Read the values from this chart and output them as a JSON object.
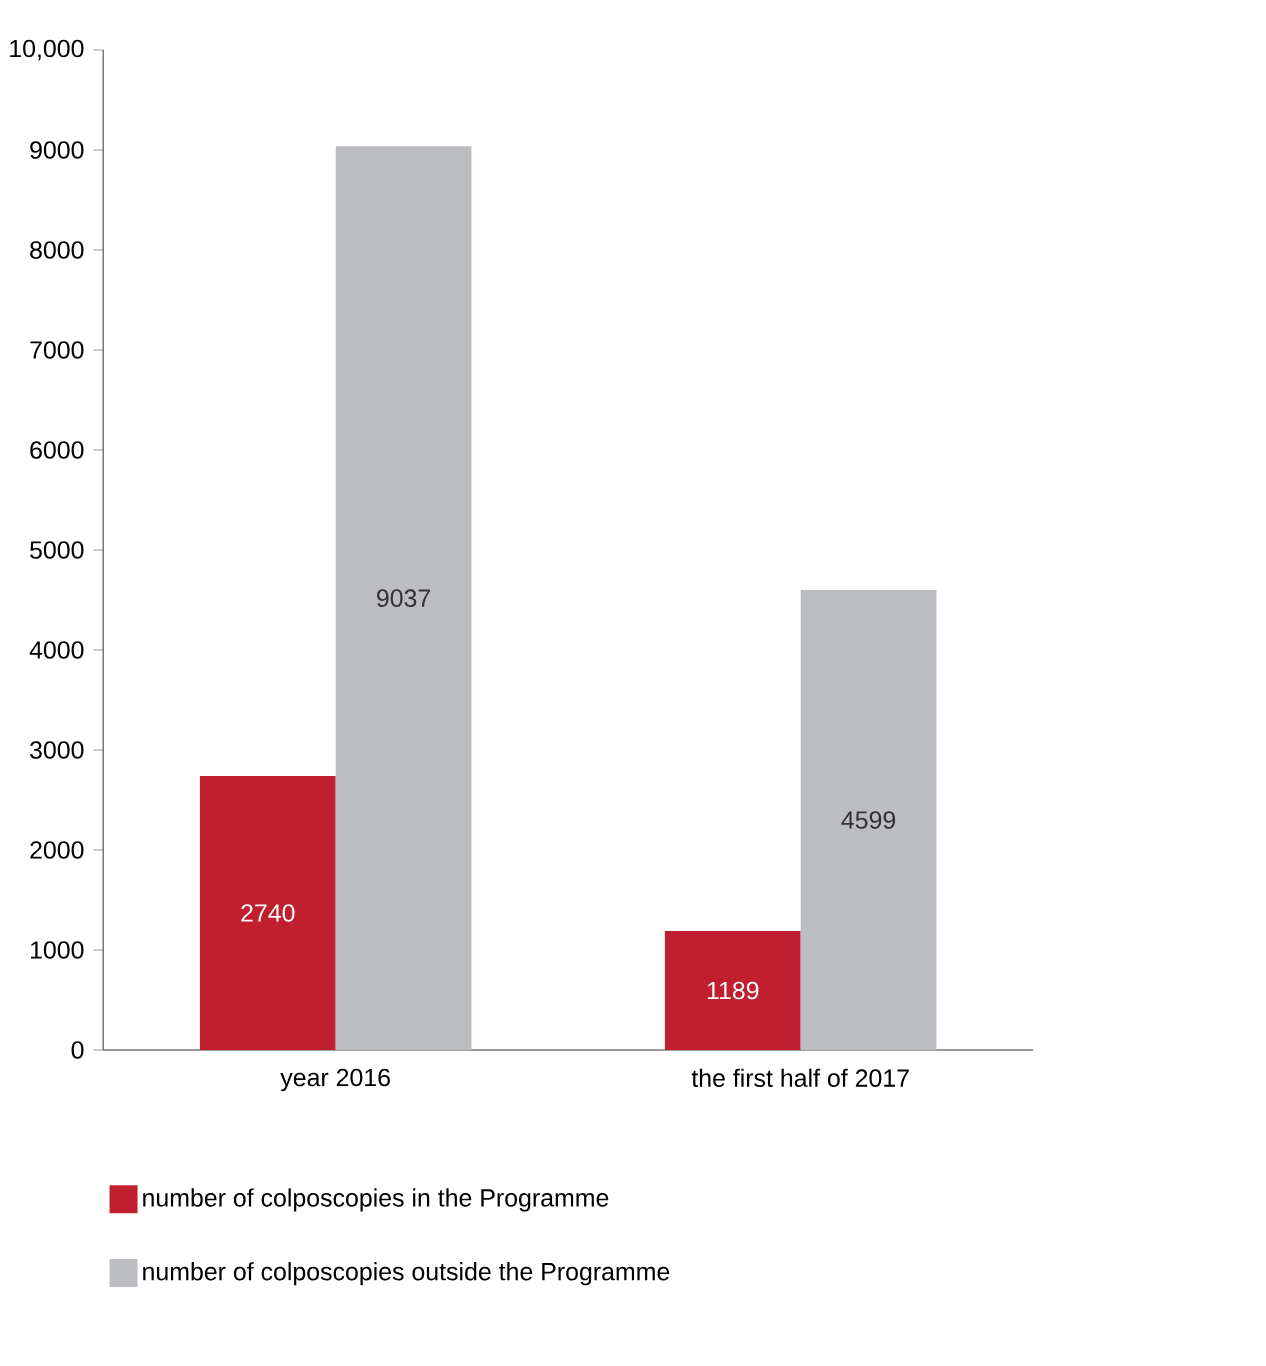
{
  "chart_data": {
    "type": "bar",
    "categories": [
      "year 2016",
      "the first half of 2017"
    ],
    "series": [
      {
        "name": "number of colposcopies in the Programme",
        "color": "#c01f2f",
        "values": [
          2740,
          1189
        ]
      },
      {
        "name": "number of colposcopies outside the Programme",
        "color": "#bcbdc1",
        "values": [
          9037,
          4599
        ]
      }
    ],
    "ylim": [
      0,
      10000
    ],
    "yticks": [
      0,
      1000,
      2000,
      3000,
      4000,
      5000,
      6000,
      7000,
      8000,
      9000,
      {
        "value": 10000,
        "label": "10,000"
      }
    ],
    "data_labels": true,
    "grid": false,
    "legend": "bottom"
  }
}
